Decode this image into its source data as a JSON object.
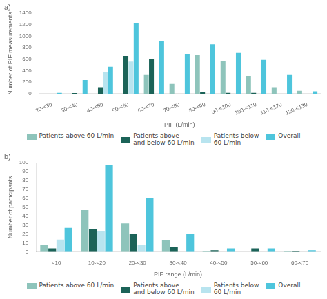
{
  "chart_data": [
    {
      "type": "bar",
      "title": "a)",
      "xlabel": "PIF (L/min)",
      "ylabel": "Number of PIF measurements",
      "categories": [
        "20-<30",
        "30-<40",
        "40-<50",
        "50-<60",
        "60-<70",
        "70-<80",
        "80-<90",
        "90-<100",
        "100-<110",
        "110-<120",
        "120-<130"
      ],
      "series": [
        {
          "name": "Patients above 60 L/min",
          "color": "#8ec4bb",
          "values": [
            0,
            0,
            0,
            0,
            325,
            170,
            670,
            570,
            300,
            100,
            50
          ]
        },
        {
          "name": "Patients above\nand below 60 L/min",
          "color": "#1b6358",
          "values": [
            0,
            10,
            100,
            660,
            600,
            0,
            30,
            15,
            15,
            0,
            0
          ]
        },
        {
          "name": "Patients below\n60 L/min",
          "color": "#b8e4ef",
          "values": [
            0,
            0,
            380,
            560,
            0,
            0,
            0,
            0,
            0,
            0,
            0
          ]
        },
        {
          "name": "Overall",
          "color": "#4ec5dc",
          "values": [
            15,
            240,
            470,
            1230,
            910,
            695,
            860,
            710,
            590,
            325,
            40
          ]
        }
      ],
      "ylim": [
        0,
        1400
      ],
      "yticks": [
        0,
        200,
        400,
        600,
        800,
        1000,
        1200,
        1400
      ],
      "grid": false,
      "legend": "bottom"
    },
    {
      "type": "bar",
      "title": "b)",
      "xlabel": "PIF range (L/min)",
      "ylabel": "Number of participants",
      "categories": [
        "<10",
        "10-<20",
        "20-<30",
        "30-<40",
        "40-<50",
        "50-<60",
        "60-<70"
      ],
      "series": [
        {
          "name": "Patients above 60 L/min",
          "color": "#8ec4bb",
          "values": [
            8,
            47,
            32,
            13,
            1,
            0,
            1
          ]
        },
        {
          "name": "Patients above\nand below 60 L/min",
          "color": "#1b6358",
          "values": [
            4,
            26,
            20,
            6,
            2,
            4,
            1
          ]
        },
        {
          "name": "Patients below\n60 L/min",
          "color": "#b8e4ef",
          "values": [
            14,
            23,
            8,
            0,
            0,
            0,
            0
          ]
        },
        {
          "name": "Overall",
          "color": "#4ec5dc",
          "values": [
            27,
            97,
            60,
            20,
            4,
            4,
            2
          ]
        }
      ],
      "ylim": [
        0,
        100
      ],
      "yticks": [
        0,
        10,
        20,
        30,
        40,
        50,
        60,
        70,
        80,
        90,
        100
      ],
      "grid": false,
      "legend": "bottom"
    }
  ]
}
